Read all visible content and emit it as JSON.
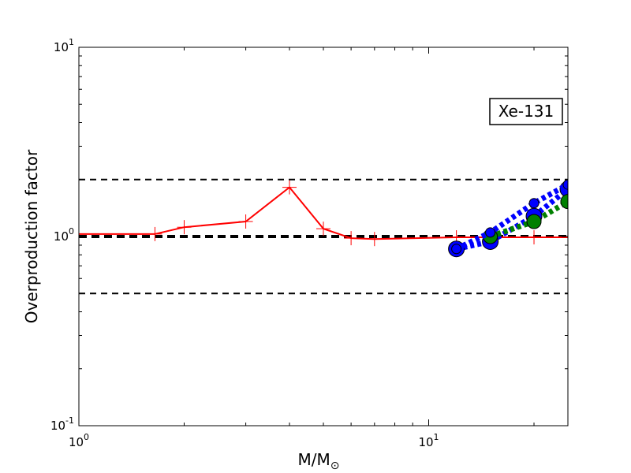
{
  "chart_data": {
    "type": "line",
    "title": "",
    "xlabel": "M/M",
    "xlabel_sub": "⊙",
    "ylabel": "Overproduction factor",
    "xscale": "log",
    "yscale": "log",
    "xlim": [
      1,
      25
    ],
    "ylim": [
      0.1,
      10
    ],
    "grid": false,
    "annotation": "Xe-131",
    "x_ticks": [
      {
        "base": "10",
        "exp": "0",
        "value": 1
      },
      {
        "base": "10",
        "exp": "1",
        "value": 10
      }
    ],
    "y_ticks": [
      {
        "base": "10",
        "exp": "-1",
        "value": 0.1
      },
      {
        "base": "10",
        "exp": "0",
        "value": 1
      },
      {
        "base": "10",
        "exp": "1",
        "value": 10
      }
    ],
    "reference_lines": [
      {
        "y": 2.0,
        "style": "dashed-thin"
      },
      {
        "y": 1.0,
        "style": "dashed-thick"
      },
      {
        "y": 0.5,
        "style": "dashed-thin"
      }
    ],
    "series": [
      {
        "color": "#ff0000",
        "style": "solid",
        "marker": "plus",
        "x": [
          1.0,
          1.65,
          2.0,
          3.0,
          4.0,
          5.0,
          6.0,
          7.0,
          12.0,
          15.0,
          20.0,
          25.0
        ],
        "y": [
          1.03,
          1.03,
          1.12,
          1.2,
          1.82,
          1.1,
          0.98,
          0.97,
          0.99,
          0.99,
          0.99,
          0.99
        ]
      },
      {
        "color": "#0000ff",
        "style": "dotted-thick",
        "marker": "circle-large",
        "x": [
          12.0,
          15.0,
          20.0,
          25.0
        ],
        "y": [
          0.86,
          0.94,
          1.28,
          1.78
        ]
      },
      {
        "color": "#008000",
        "style": "dotted-thick",
        "marker": "circle",
        "x": [
          15.0,
          20.0,
          25.0
        ],
        "y": [
          1.0,
          1.2,
          1.53
        ]
      },
      {
        "color": "#0000ff",
        "style": "dotted-thick",
        "marker": "circle-small",
        "x": [
          12.0,
          15.0,
          20.0,
          25.0
        ],
        "y": [
          0.86,
          1.05,
          1.5,
          1.88
        ]
      }
    ]
  }
}
